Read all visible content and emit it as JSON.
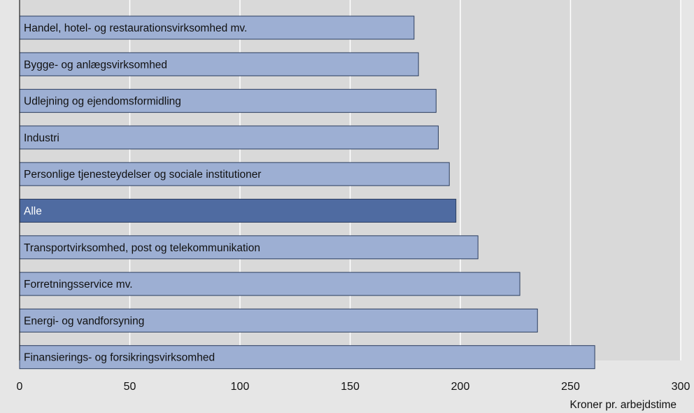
{
  "chart_data": {
    "type": "bar",
    "orientation": "horizontal",
    "categories": [
      "Handel, hotel- og restaurationsvirksomhed mv.",
      "Bygge- og anlægsvirksomhed",
      "Udlejning og ejendomsformidling",
      "Industri",
      "Personlige tjenesteydelser og sociale institutioner",
      "Alle",
      "Transportvirksomhed, post og telekommunikation",
      "Forretningsservice mv.",
      "Energi- og vandforsyning",
      "Finansierings- og forsikringsvirksomhed"
    ],
    "values": [
      179,
      181,
      189,
      190,
      195,
      198,
      208,
      227,
      235,
      261
    ],
    "highlight_category": "Alle",
    "xlim": [
      0,
      300
    ],
    "xticks": [
      "0",
      "50",
      "100",
      "150",
      "200",
      "250",
      "300"
    ],
    "xlabel": "Kroner pr. arbejdstime",
    "grid": true,
    "colors": {
      "bar": "#9dafd3",
      "highlight_bar": "#4f6ba1",
      "bar_border": "#2c3e60",
      "plot_background": "#d9d9d9",
      "gridline": "#ffffff",
      "axis": "#222222"
    }
  }
}
